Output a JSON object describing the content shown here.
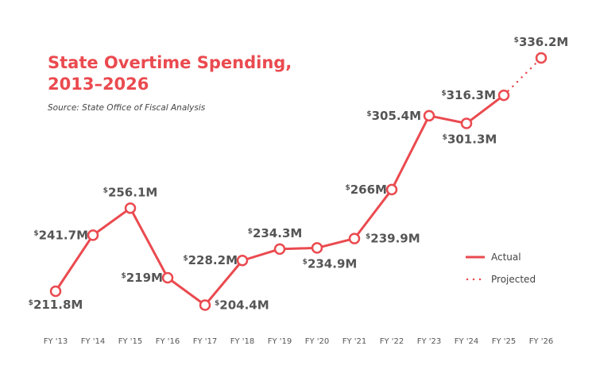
{
  "chart_data": {
    "type": "line",
    "title": "State Overtime Spending, 2013–2026",
    "subtitle": "Source: State Office of Fiscal Analysis",
    "categories": [
      "FY '13",
      "FY '14",
      "FY '15",
      "FY '16",
      "FY '17",
      "FY '18",
      "FY '19",
      "FY '20",
      "FY '21",
      "FY '22",
      "FY '23",
      "FY '24",
      "FY '25",
      "FY '26"
    ],
    "series": [
      {
        "name": "Actual",
        "style": "solid",
        "x": [
          "FY '13",
          "FY '14",
          "FY '15",
          "FY '16",
          "FY '17",
          "FY '18",
          "FY '19",
          "FY '20",
          "FY '21",
          "FY '22",
          "FY '23",
          "FY '24",
          "FY '25"
        ],
        "values": [
          211.8,
          241.7,
          256.1,
          219,
          204.4,
          228.2,
          234.3,
          234.9,
          239.9,
          266,
          305.4,
          301.3,
          316.3
        ]
      },
      {
        "name": "Projected",
        "style": "dotted",
        "x": [
          "FY '25",
          "FY '26"
        ],
        "values": [
          316.3,
          336.2
        ]
      }
    ],
    "data_labels": [
      "211.8M",
      "241.7M",
      "256.1M",
      "219M",
      "204.4M",
      "228.2M",
      "234.3M",
      "234.9M",
      "239.9M",
      "266M",
      "305.4M",
      "301.3M",
      "316.3M",
      "336.2M"
    ],
    "label_prefix": "$",
    "ylim": [
      200,
      340
    ],
    "grid": false,
    "y_axis_visible": false,
    "legend_position": "right",
    "colors": {
      "line": "#ea4a4f",
      "labels": "#555555",
      "background": "#ffffff"
    }
  }
}
